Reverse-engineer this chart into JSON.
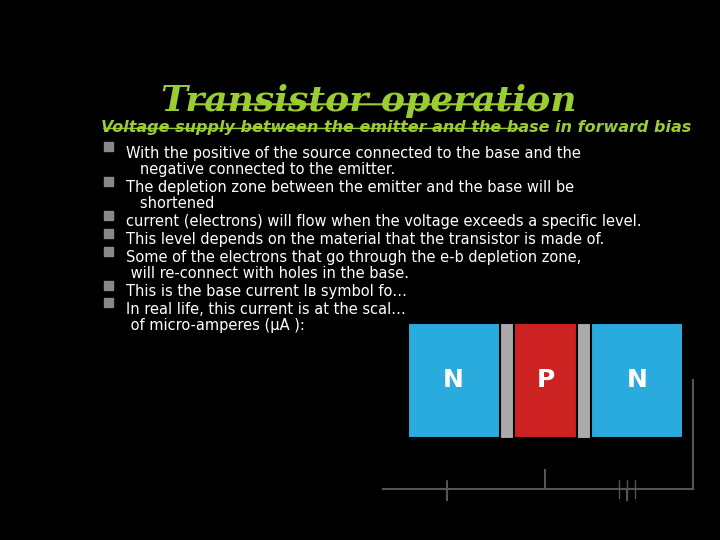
{
  "background_color": "#000000",
  "title": "Transistor operation",
  "title_color": "#9acd32",
  "title_fontsize": 26,
  "subtitle": "Voltage supply between the emitter and the base in forward bias",
  "subtitle_color": "#9acd32",
  "subtitle_fontsize": 11.5,
  "text_color": "#ffffff",
  "bullet_color": "#888888",
  "text_fontsize": 10.5,
  "n_color": "#29abde",
  "p_color": "#cc2222",
  "depletion_color": "#aaaaaa",
  "wire_color": "#555555",
  "diagram_bg": "#ffffff",
  "bullet_y_positions": [
    [
      0.805,
      "With the positive of the source connected to the base and the",
      true
    ],
    [
      0.767,
      "   negative connected to the emitter.",
      false
    ],
    [
      0.722,
      "The depletion zone between the emitter and the base will be",
      true
    ],
    [
      0.684,
      "   shortened",
      false
    ],
    [
      0.64,
      "current (electrons) will flow when the voltage exceeds a specific level.",
      true
    ],
    [
      0.597,
      "This level depends on the material that the transistor is made of.",
      true
    ],
    [
      0.554,
      "Some of the electrons that go through the e-b depletion zone,",
      true
    ],
    [
      0.516,
      " will re-connect with holes in the base.",
      false
    ],
    [
      0.472,
      "This is the base current Iʙ symbol fo…",
      true
    ],
    [
      0.43,
      "In real life, this current is at the scal…",
      true
    ],
    [
      0.392,
      " of micro-amperes (μA ):",
      false
    ]
  ]
}
